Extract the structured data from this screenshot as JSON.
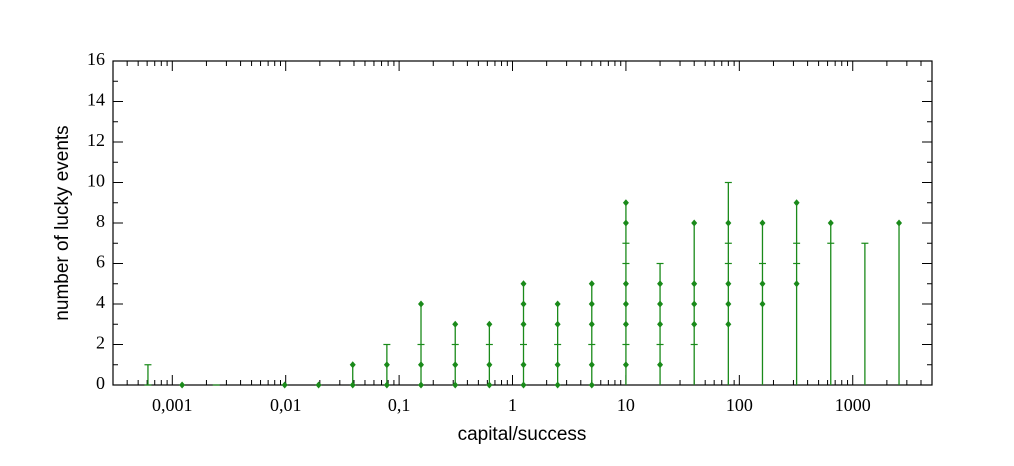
{
  "chart_data": {
    "type": "scatter",
    "xlabel": "capital/success",
    "ylabel": "number of lucky events",
    "xscale": "log",
    "xlim": [
      0.0003,
      5000
    ],
    "ylim": [
      0,
      16
    ],
    "xticks": [
      {
        "value": 0.001,
        "label": "0,001"
      },
      {
        "value": 0.01,
        "label": "0,01"
      },
      {
        "value": 0.1,
        "label": "0,1"
      },
      1,
      10,
      100,
      1000
    ],
    "yticks": [
      0,
      2,
      4,
      6,
      8,
      10,
      12,
      14,
      16
    ],
    "color": "#1a8a1a",
    "stems": true,
    "series": [
      {
        "marker": "diamond",
        "x": [
          0.00122,
          0.0098,
          0.0195,
          0.039,
          0.039,
          0.078,
          0.078,
          0.156,
          0.156,
          0.156,
          0.3125,
          0.3125,
          0.3125,
          0.625,
          0.625,
          0.625,
          1.25,
          1.25,
          1.25,
          1.25,
          1.25,
          2.5,
          2.5,
          2.5,
          2.5,
          5,
          5,
          5,
          5,
          5,
          10,
          10,
          10,
          10,
          10,
          10,
          20,
          20,
          20,
          20,
          40,
          40,
          40,
          40,
          80,
          80,
          80,
          80,
          160,
          160,
          160,
          320,
          320,
          640,
          2560
        ],
        "values": [
          0,
          0,
          0,
          1,
          0,
          1,
          0,
          4,
          1,
          0,
          3,
          1,
          0,
          3,
          1,
          0,
          5,
          4,
          3,
          1,
          0,
          4,
          3,
          1,
          0,
          5,
          4,
          3,
          1,
          0,
          9,
          8,
          5,
          4,
          3,
          1,
          5,
          4,
          3,
          1,
          8,
          5,
          4,
          3,
          8,
          5,
          4,
          3,
          8,
          5,
          4,
          9,
          5,
          8,
          8
        ]
      },
      {
        "marker": "tick",
        "x": [
          0.00061,
          0.00061,
          0.00244,
          0.078,
          0.156,
          0.3125,
          0.625,
          1.25,
          2.5,
          5,
          10,
          10,
          10,
          20,
          20,
          40,
          80,
          80,
          80,
          160,
          320,
          320,
          640,
          1280
        ],
        "values": [
          1,
          0,
          0,
          2,
          2,
          2,
          2,
          2,
          2,
          2,
          7,
          6,
          2,
          6,
          2,
          2,
          10,
          7,
          6,
          6,
          7,
          6,
          7,
          7
        ]
      }
    ]
  }
}
